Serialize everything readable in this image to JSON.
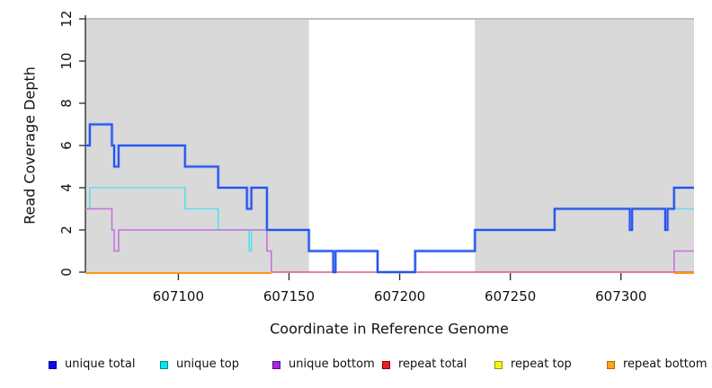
{
  "chart_data": {
    "type": "line",
    "subtype": "step-coverage-plot",
    "title": "",
    "xlabel": "Coordinate in Reference Genome",
    "ylabel": "Read Coverage Depth",
    "xlim": [
      607058,
      607333
    ],
    "ylim": [
      0,
      12
    ],
    "x_ticks": [
      607100,
      607150,
      607200,
      607250,
      607300
    ],
    "y_ticks": [
      0,
      2,
      4,
      6,
      8,
      10,
      12
    ],
    "grid": "off",
    "legend_position": "bottom",
    "background_color": "#ffffff",
    "shaded_region_color": "#d9d9d9",
    "top_border_color": "#9a9a9a",
    "axis_color": "#333333",
    "shaded_regions": [
      [
        607058,
        607159
      ],
      [
        607234,
        607333
      ]
    ],
    "unshaded_gap": [
      607159,
      607234
    ],
    "series": [
      {
        "name": "unique total",
        "color": "#2753e8",
        "width": 2,
        "segments": [
          [
            607058,
            607060,
            6
          ],
          [
            607060,
            607070,
            7
          ],
          [
            607070,
            607071,
            6
          ],
          [
            607071,
            607073,
            5
          ],
          [
            607073,
            607103,
            6
          ],
          [
            607103,
            607118,
            5
          ],
          [
            607118,
            607131,
            4
          ],
          [
            607131,
            607133,
            3
          ],
          [
            607133,
            607140,
            4
          ],
          [
            607140,
            607159,
            2
          ],
          [
            607159,
            607170,
            1
          ],
          [
            607170,
            607171,
            0
          ],
          [
            607171,
            607190,
            1
          ],
          [
            607190,
            607207,
            0
          ],
          [
            607207,
            607234,
            1
          ],
          [
            607234,
            607270,
            2
          ],
          [
            607270,
            607304,
            3
          ],
          [
            607304,
            607305,
            2
          ],
          [
            607305,
            607320,
            3
          ],
          [
            607320,
            607321,
            2
          ],
          [
            607321,
            607324,
            3
          ],
          [
            607324,
            607333,
            4
          ]
        ],
        "render_paths": [
          [
            [
              607058,
              607060,
              6
            ],
            [
              607060,
              607070,
              7
            ],
            [
              607070,
              607071,
              6
            ],
            [
              607071,
              607073,
              5
            ],
            [
              607073,
              607103,
              6
            ],
            [
              607103,
              607118,
              5
            ],
            [
              607118,
              607131,
              4
            ],
            [
              607131,
              607133,
              3
            ],
            [
              607133,
              607140,
              4
            ],
            [
              607140,
              607159,
              2
            ],
            [
              607159,
              607170,
              1
            ],
            [
              607170,
              607171,
              0
            ],
            [
              607171,
              607190,
              1
            ],
            [
              607190,
              607207,
              0
            ],
            [
              607207,
              607234,
              1
            ],
            [
              607234,
              607270,
              2
            ],
            [
              607270,
              607304,
              3
            ],
            [
              607304,
              607305,
              2
            ],
            [
              607305,
              607320,
              3
            ],
            [
              607320,
              607321,
              2
            ],
            [
              607321,
              607324,
              3
            ],
            [
              607324,
              607333,
              4
            ]
          ]
        ],
        "glow": "rgba(130,165,255,0.6)",
        "dy": 0
      },
      {
        "name": "unique top",
        "color": "#5adfef",
        "width": 1.6,
        "segments": [
          [
            607058,
            607060,
            3
          ],
          [
            607060,
            607103,
            4
          ],
          [
            607103,
            607118,
            3
          ],
          [
            607118,
            607132,
            2
          ],
          [
            607132,
            607133,
            1
          ],
          [
            607133,
            607142,
            2
          ],
          [
            607142,
            607324,
            0
          ],
          [
            607324,
            607333,
            3
          ]
        ],
        "render_paths": [
          [
            [
              607058,
              607060,
              3
            ],
            [
              607060,
              607103,
              4
            ],
            [
              607103,
              607118,
              3
            ],
            [
              607118,
              607132,
              2
            ],
            [
              607132,
              607133,
              1
            ],
            [
              607133,
              607140,
              2
            ]
          ],
          [
            [
              607324,
              607333,
              3
            ]
          ]
        ],
        "glow": null,
        "dy": 0
      },
      {
        "name": "unique bottom",
        "color": "#c273da",
        "width": 1.6,
        "segments": [
          [
            607058,
            607070,
            3
          ],
          [
            607070,
            607071,
            2
          ],
          [
            607071,
            607073,
            1
          ],
          [
            607073,
            607140,
            2
          ],
          [
            607140,
            607142,
            1
          ],
          [
            607142,
            607324,
            0
          ],
          [
            607324,
            607333,
            1
          ]
        ],
        "render_paths": [
          [
            [
              607058,
              607070,
              3
            ],
            [
              607070,
              607071,
              2
            ],
            [
              607071,
              607073,
              1
            ],
            [
              607073,
              607140,
              2
            ],
            [
              607140,
              607142,
              1
            ],
            [
              607142,
              607142,
              0
            ]
          ],
          [
            [
              607324,
              607324,
              0
            ],
            [
              607324,
              607333,
              1
            ]
          ]
        ],
        "glow": null,
        "dy": 0
      },
      {
        "name": "repeat total",
        "color": "#e15876",
        "width": 1.6,
        "segments": [
          [
            607058,
            607333,
            0
          ]
        ],
        "render_paths": [
          [
            [
              607142,
              607333,
              0
            ]
          ]
        ],
        "glow": null,
        "dy": 0
      },
      {
        "name": "repeat top",
        "color": "#f2f214",
        "width": 1.6,
        "segments": [
          [
            607058,
            607333,
            0
          ]
        ],
        "render_paths": [],
        "glow": null,
        "dy": 1,
        "note": "value 0 across range; hidden beneath repeat bottom line"
      },
      {
        "name": "repeat bottom",
        "color": "#ff9518",
        "width": 2,
        "segments": [
          [
            607058,
            607333,
            0
          ]
        ],
        "render_paths": [
          [
            [
              607058,
              607142,
              0
            ]
          ],
          [
            [
              607324,
              607333,
              0
            ]
          ]
        ],
        "glow": null,
        "dy": 1
      }
    ],
    "draw_order": [
      "repeat top",
      "repeat total",
      "repeat bottom",
      "unique top",
      "unique bottom",
      "unique total"
    ]
  },
  "legend": {
    "items": [
      {
        "label": "unique total",
        "fill": "#0b0bea",
        "border": "#00009a"
      },
      {
        "label": "unique top",
        "fill": "#00eaf0",
        "border": "#008b8b"
      },
      {
        "label": "unique bottom",
        "fill": "#a62be0",
        "border": "#5c0d8a"
      },
      {
        "label": "repeat total",
        "fill": "#ec1c24",
        "border": "#8b0000"
      },
      {
        "label": "repeat top",
        "fill": "#f6f614",
        "border": "#97970a"
      },
      {
        "label": "repeat bottom",
        "fill": "#ffa616",
        "border": "#b36b00"
      }
    ]
  }
}
